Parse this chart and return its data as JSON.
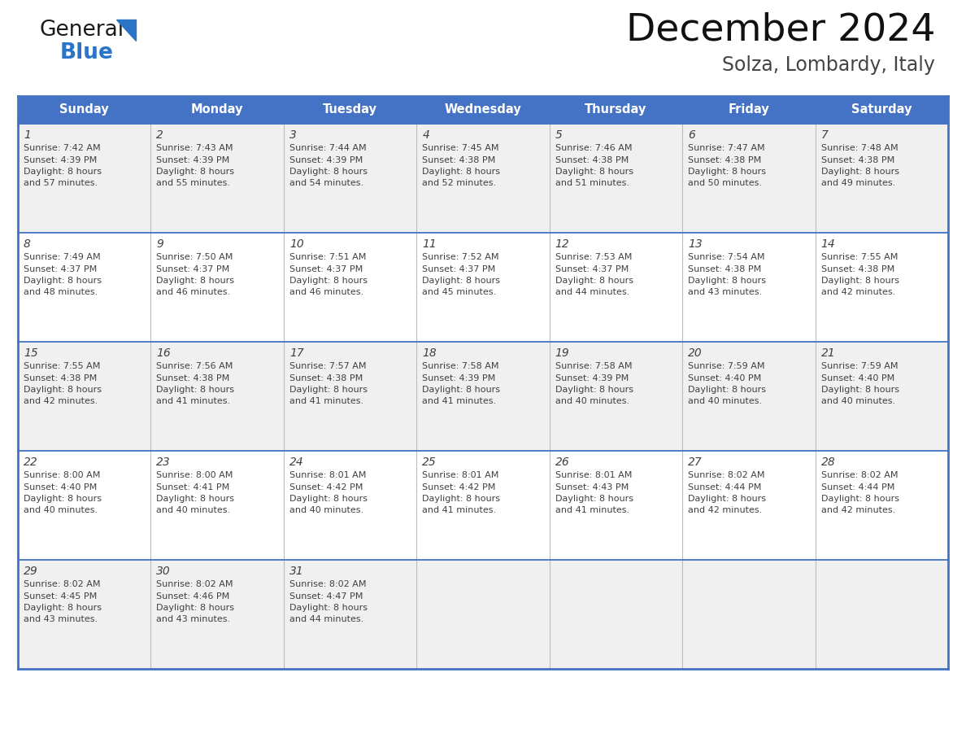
{
  "title": "December 2024",
  "subtitle": "Solza, Lombardy, Italy",
  "header_bg_color": "#4472C4",
  "header_text_color": "#FFFFFF",
  "header_font_size": 10.5,
  "day_names": [
    "Sunday",
    "Monday",
    "Tuesday",
    "Wednesday",
    "Thursday",
    "Friday",
    "Saturday"
  ],
  "row_bg_even": "#F0F0F0",
  "row_bg_odd": "#FFFFFF",
  "cell_text_color": "#404040",
  "cell_num_font_size": 10,
  "cell_info_font_size": 8.0,
  "title_font_size": 34,
  "subtitle_font_size": 17,
  "grid_color": "#4472C4",
  "logo_color_general": "#1a1a1a",
  "logo_color_blue": "#2B74C8",
  "logo_triangle_color": "#2B74C8",
  "weeks": [
    [
      {
        "day": 1,
        "sunrise": "7:42 AM",
        "sunset": "4:39 PM",
        "daylight": "8 hours and 57 minutes"
      },
      {
        "day": 2,
        "sunrise": "7:43 AM",
        "sunset": "4:39 PM",
        "daylight": "8 hours and 55 minutes"
      },
      {
        "day": 3,
        "sunrise": "7:44 AM",
        "sunset": "4:39 PM",
        "daylight": "8 hours and 54 minutes"
      },
      {
        "day": 4,
        "sunrise": "7:45 AM",
        "sunset": "4:38 PM",
        "daylight": "8 hours and 52 minutes"
      },
      {
        "day": 5,
        "sunrise": "7:46 AM",
        "sunset": "4:38 PM",
        "daylight": "8 hours and 51 minutes"
      },
      {
        "day": 6,
        "sunrise": "7:47 AM",
        "sunset": "4:38 PM",
        "daylight": "8 hours and 50 minutes"
      },
      {
        "day": 7,
        "sunrise": "7:48 AM",
        "sunset": "4:38 PM",
        "daylight": "8 hours and 49 minutes"
      }
    ],
    [
      {
        "day": 8,
        "sunrise": "7:49 AM",
        "sunset": "4:37 PM",
        "daylight": "8 hours and 48 minutes"
      },
      {
        "day": 9,
        "sunrise": "7:50 AM",
        "sunset": "4:37 PM",
        "daylight": "8 hours and 46 minutes"
      },
      {
        "day": 10,
        "sunrise": "7:51 AM",
        "sunset": "4:37 PM",
        "daylight": "8 hours and 46 minutes"
      },
      {
        "day": 11,
        "sunrise": "7:52 AM",
        "sunset": "4:37 PM",
        "daylight": "8 hours and 45 minutes"
      },
      {
        "day": 12,
        "sunrise": "7:53 AM",
        "sunset": "4:37 PM",
        "daylight": "8 hours and 44 minutes"
      },
      {
        "day": 13,
        "sunrise": "7:54 AM",
        "sunset": "4:38 PM",
        "daylight": "8 hours and 43 minutes"
      },
      {
        "day": 14,
        "sunrise": "7:55 AM",
        "sunset": "4:38 PM",
        "daylight": "8 hours and 42 minutes"
      }
    ],
    [
      {
        "day": 15,
        "sunrise": "7:55 AM",
        "sunset": "4:38 PM",
        "daylight": "8 hours and 42 minutes"
      },
      {
        "day": 16,
        "sunrise": "7:56 AM",
        "sunset": "4:38 PM",
        "daylight": "8 hours and 41 minutes"
      },
      {
        "day": 17,
        "sunrise": "7:57 AM",
        "sunset": "4:38 PM",
        "daylight": "8 hours and 41 minutes"
      },
      {
        "day": 18,
        "sunrise": "7:58 AM",
        "sunset": "4:39 PM",
        "daylight": "8 hours and 41 minutes"
      },
      {
        "day": 19,
        "sunrise": "7:58 AM",
        "sunset": "4:39 PM",
        "daylight": "8 hours and 40 minutes"
      },
      {
        "day": 20,
        "sunrise": "7:59 AM",
        "sunset": "4:40 PM",
        "daylight": "8 hours and 40 minutes"
      },
      {
        "day": 21,
        "sunrise": "7:59 AM",
        "sunset": "4:40 PM",
        "daylight": "8 hours and 40 minutes"
      }
    ],
    [
      {
        "day": 22,
        "sunrise": "8:00 AM",
        "sunset": "4:40 PM",
        "daylight": "8 hours and 40 minutes"
      },
      {
        "day": 23,
        "sunrise": "8:00 AM",
        "sunset": "4:41 PM",
        "daylight": "8 hours and 40 minutes"
      },
      {
        "day": 24,
        "sunrise": "8:01 AM",
        "sunset": "4:42 PM",
        "daylight": "8 hours and 40 minutes"
      },
      {
        "day": 25,
        "sunrise": "8:01 AM",
        "sunset": "4:42 PM",
        "daylight": "8 hours and 41 minutes"
      },
      {
        "day": 26,
        "sunrise": "8:01 AM",
        "sunset": "4:43 PM",
        "daylight": "8 hours and 41 minutes"
      },
      {
        "day": 27,
        "sunrise": "8:02 AM",
        "sunset": "4:44 PM",
        "daylight": "8 hours and 42 minutes"
      },
      {
        "day": 28,
        "sunrise": "8:02 AM",
        "sunset": "4:44 PM",
        "daylight": "8 hours and 42 minutes"
      }
    ],
    [
      {
        "day": 29,
        "sunrise": "8:02 AM",
        "sunset": "4:45 PM",
        "daylight": "8 hours and 43 minutes"
      },
      {
        "day": 30,
        "sunrise": "8:02 AM",
        "sunset": "4:46 PM",
        "daylight": "8 hours and 43 minutes"
      },
      {
        "day": 31,
        "sunrise": "8:02 AM",
        "sunset": "4:47 PM",
        "daylight": "8 hours and 44 minutes"
      },
      null,
      null,
      null,
      null
    ]
  ]
}
